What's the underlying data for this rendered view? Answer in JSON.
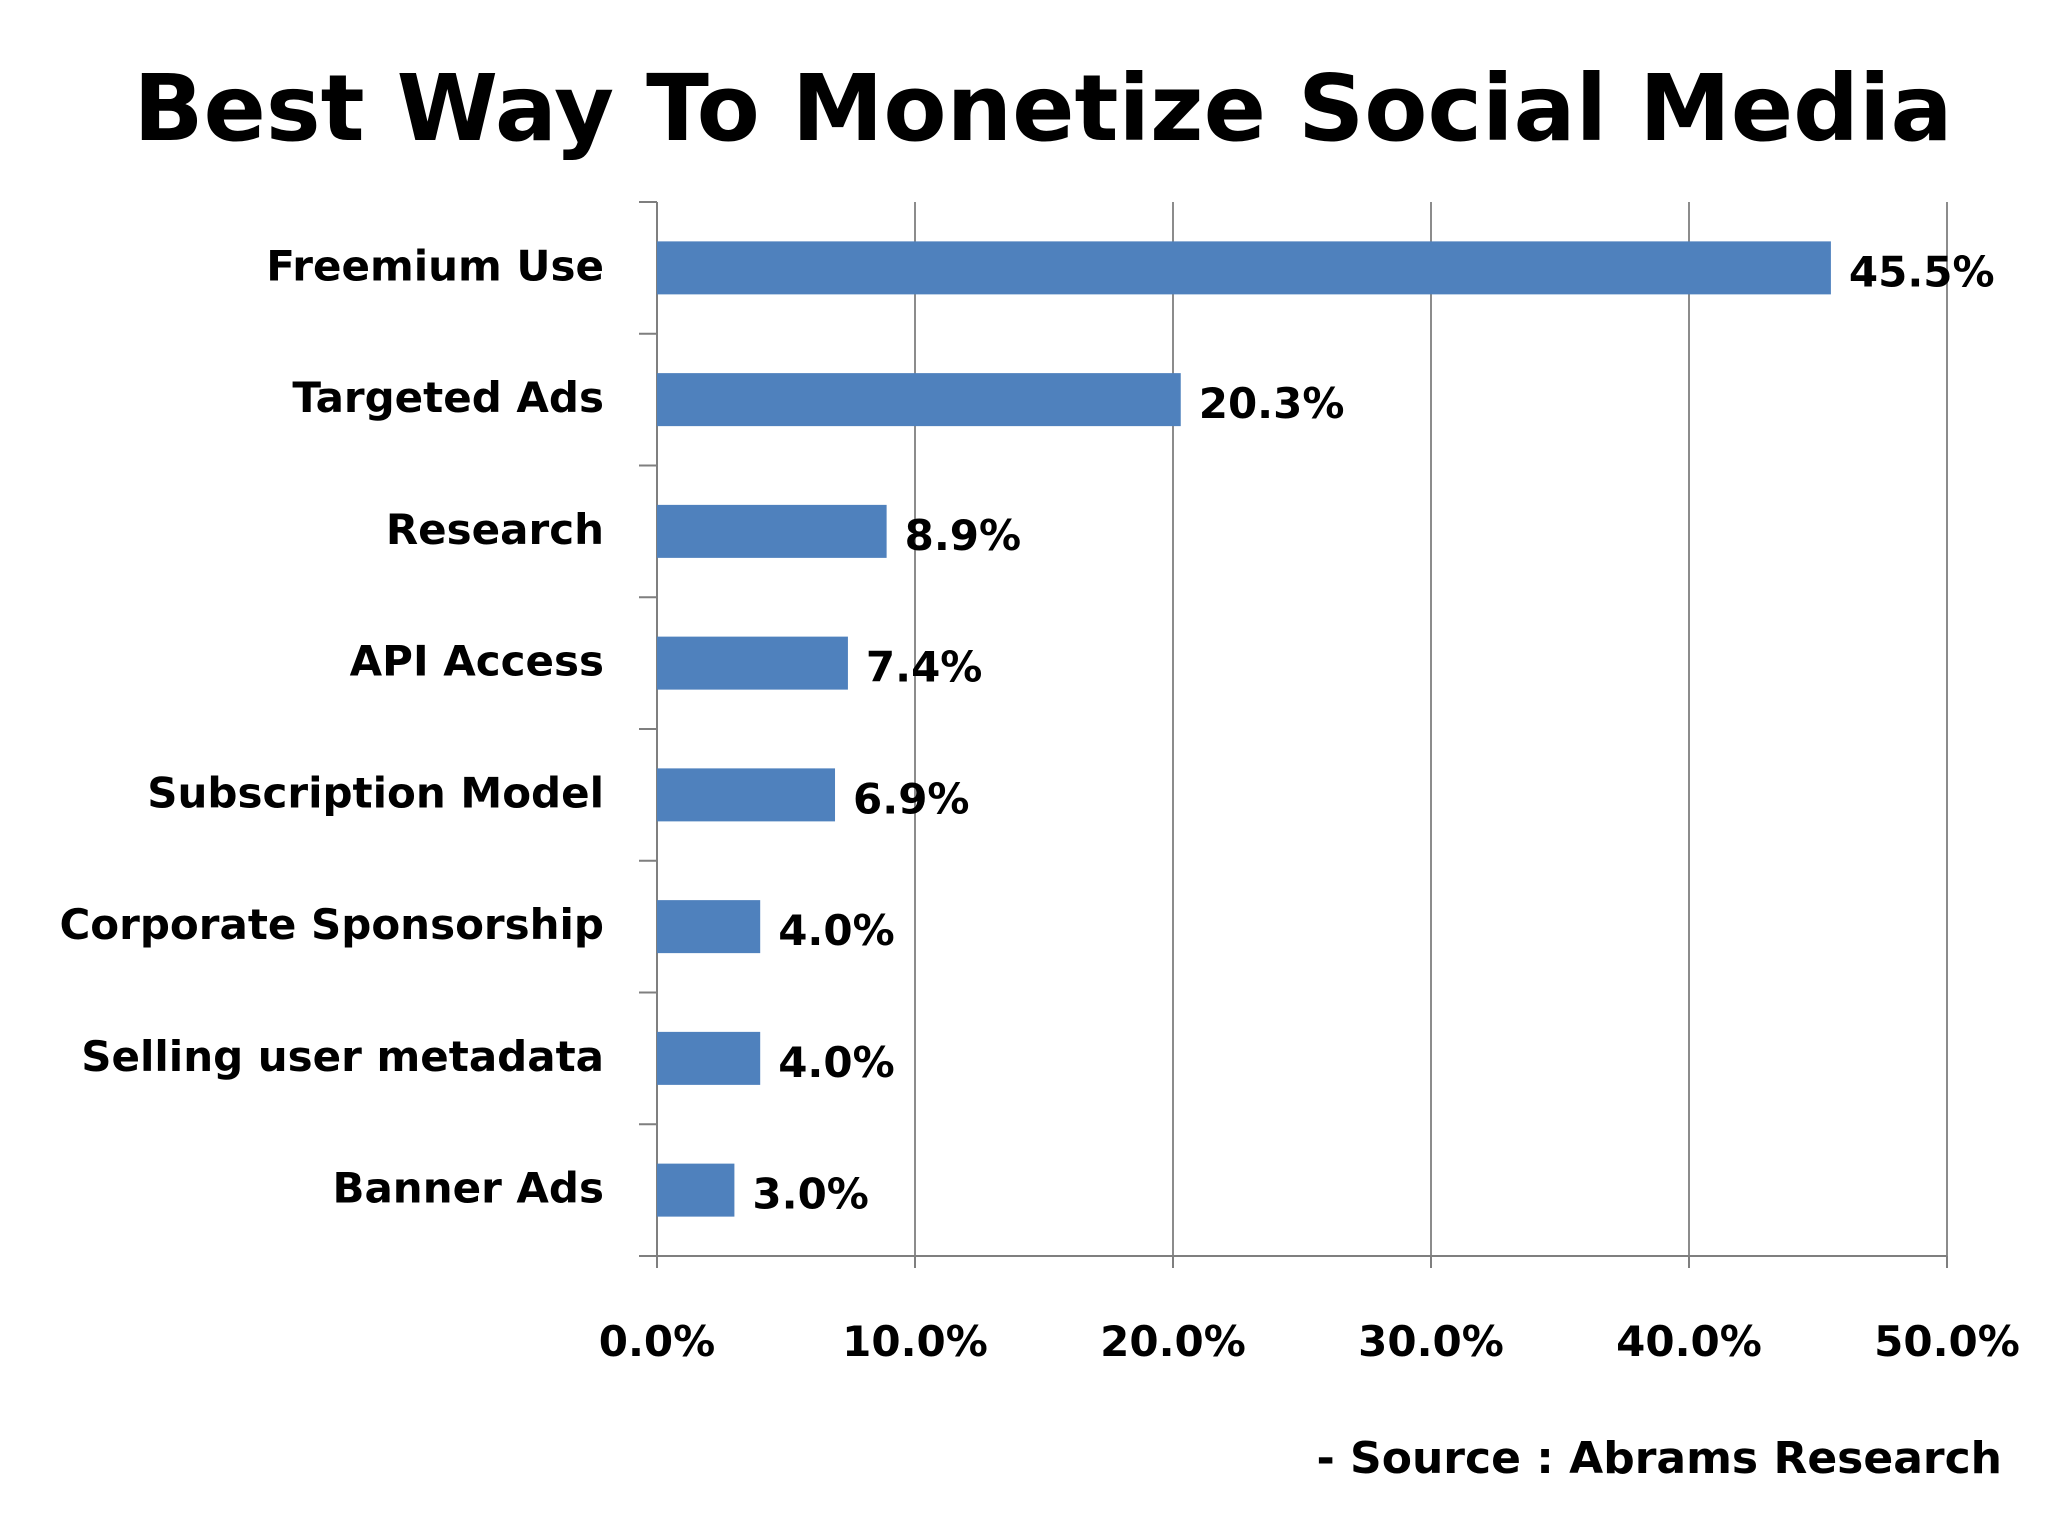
{
  "chart_data": {
    "type": "bar",
    "orientation": "horizontal",
    "title": "Best Way To Monetize Social Media",
    "categories": [
      "Freemium Use",
      "Targeted Ads",
      "Research",
      "API Access",
      "Subscription Model",
      "Corporate Sponsorship",
      "Selling user metadata",
      "Banner Ads"
    ],
    "values": [
      45.5,
      20.3,
      8.9,
      7.4,
      6.9,
      4.0,
      4.0,
      3.0
    ],
    "value_labels": [
      "45.5%",
      "20.3%",
      "8.9%",
      "7.4%",
      "6.9%",
      "4.0%",
      "4.0%",
      "3.0%"
    ],
    "x_ticks": [
      0,
      10,
      20,
      30,
      40,
      50
    ],
    "x_tick_labels": [
      "0.0%",
      "10.0%",
      "20.0%",
      "30.0%",
      "40.0%",
      "50.0%"
    ],
    "xlim": [
      0,
      50
    ],
    "grid": "vertical",
    "legend": "none",
    "bar_color": "#4F81BD",
    "source": "- Source : Abrams Research"
  }
}
